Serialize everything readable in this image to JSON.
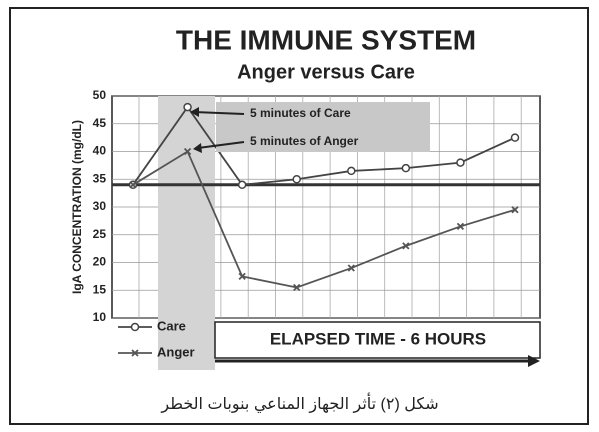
{
  "chart_data": {
    "type": "line",
    "title": "THE IMMUNE SYSTEM",
    "subtitle": "Anger versus Care",
    "y_label": "IgA CONCENTRATION (mg/dL)",
    "categories": [
      null,
      null,
      null,
      null,
      null,
      null,
      null,
      null
    ],
    "series": [
      {
        "name": "Care",
        "color": "#444444",
        "marker": "circle",
        "values": [
          34,
          48,
          34,
          35,
          36.5,
          37,
          38,
          42.5
        ]
      },
      {
        "name": "Anger",
        "color": "#555555",
        "marker": "cross",
        "values": [
          34,
          40,
          17.5,
          15.5,
          19,
          23,
          26.5,
          29.5
        ]
      }
    ],
    "reference_line": 34,
    "ylim": [
      10,
      50
    ],
    "yticks": [
      10,
      15,
      20,
      25,
      30,
      35,
      40,
      45,
      50
    ],
    "grid": true,
    "annotations": [
      "5 minutes of Care",
      "5 minutes of Anger"
    ],
    "x_label": "ELAPSED TIME - 6 HOURS",
    "caption": "شكل (٢) تأثر الجهاز المناعي بنوبات الخطر"
  }
}
